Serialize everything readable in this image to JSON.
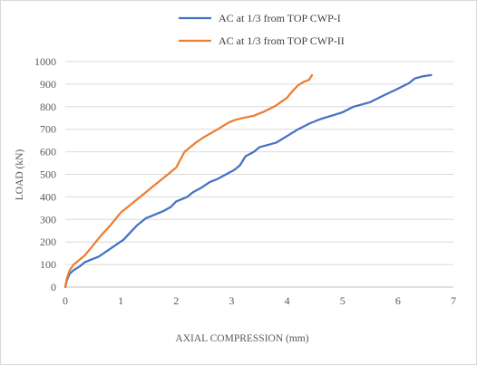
{
  "chart_data": {
    "type": "line",
    "title": "",
    "xlabel": "AXIAL COMPRESSION (mm)",
    "ylabel": "LOAD (kN)",
    "xlim": [
      0,
      7
    ],
    "ylim": [
      0,
      1000
    ],
    "xticks": [
      0,
      1,
      2,
      3,
      4,
      5,
      6,
      7
    ],
    "yticks": [
      0,
      100,
      200,
      300,
      400,
      500,
      600,
      700,
      800,
      900,
      1000
    ],
    "grid": "horizontal",
    "legend_position": "top",
    "series": [
      {
        "name": "AC at 1/3 from TOP CWP-I",
        "color": "#4472C4",
        "x": [
          0,
          0.03,
          0.08,
          0.15,
          0.25,
          0.35,
          0.45,
          0.6,
          0.75,
          0.9,
          1.05,
          1.2,
          1.3,
          1.45,
          1.6,
          1.75,
          1.9,
          2.0,
          2.2,
          2.3,
          2.45,
          2.6,
          2.75,
          2.9,
          3.05,
          3.15,
          3.25,
          3.4,
          3.5,
          3.65,
          3.8,
          4.0,
          4.2,
          4.4,
          4.6,
          4.8,
          5.0,
          5.2,
          5.5,
          5.7,
          6.0,
          6.2,
          6.3,
          6.45,
          6.6
        ],
        "y": [
          0,
          30,
          60,
          75,
          90,
          110,
          120,
          135,
          160,
          185,
          210,
          250,
          275,
          305,
          320,
          335,
          355,
          380,
          400,
          420,
          440,
          465,
          480,
          500,
          520,
          540,
          580,
          600,
          620,
          630,
          640,
          670,
          700,
          725,
          745,
          760,
          775,
          800,
          820,
          845,
          880,
          905,
          925,
          935,
          940
        ]
      },
      {
        "name": "AC at 1/3 from TOP CWP-II",
        "color": "#ED7D31",
        "x": [
          0,
          0.03,
          0.08,
          0.15,
          0.25,
          0.35,
          0.45,
          0.55,
          0.65,
          0.8,
          0.9,
          1.0,
          1.15,
          1.3,
          1.45,
          1.6,
          1.75,
          1.9,
          2.0,
          2.15,
          2.35,
          2.5,
          2.75,
          2.95,
          3.05,
          3.2,
          3.4,
          3.6,
          3.8,
          4.0,
          4.1,
          4.2,
          4.3,
          4.4,
          4.45
        ],
        "y": [
          0,
          40,
          75,
          100,
          120,
          140,
          170,
          200,
          230,
          270,
          300,
          330,
          360,
          390,
          420,
          450,
          480,
          510,
          530,
          600,
          640,
          665,
          700,
          730,
          740,
          750,
          760,
          780,
          805,
          840,
          870,
          895,
          910,
          920,
          940
        ]
      }
    ]
  }
}
